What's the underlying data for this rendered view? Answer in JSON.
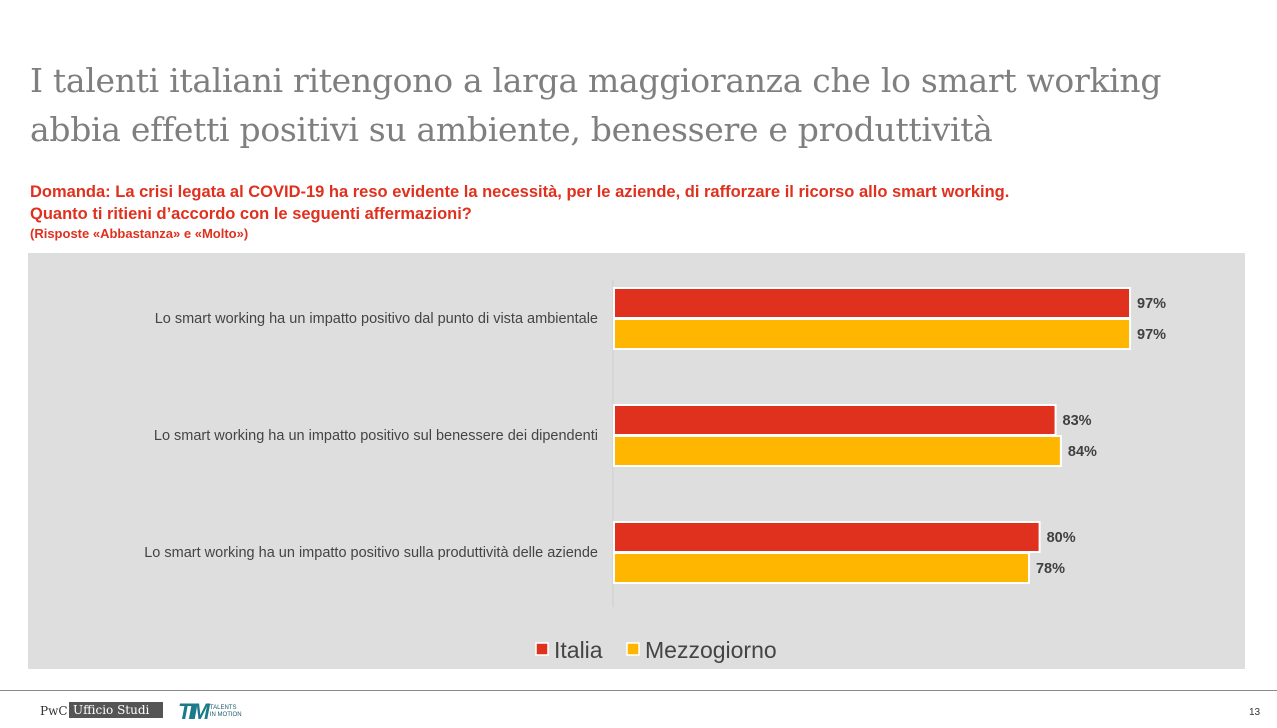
{
  "title": "I talenti italiani ritengono a larga maggioranza che lo smart working abbia effetti positivi su ambiente, benessere e produttività",
  "question": {
    "line1": "Domanda: La crisi legata al COVID-19 ha reso evidente la necessità, per le aziende, di rafforzare il ricorso allo smart working.",
    "line2": "Quanto ti ritieni d’accordo con le seguenti affermazioni?",
    "note": "(Risposte «Abbastanza» e «Molto»)"
  },
  "chart_data": {
    "type": "bar",
    "orientation": "horizontal",
    "categories": [
      "Lo smart working ha un impatto positivo dal punto di vista ambientale",
      "Lo smart working ha un impatto positivo sul benessere dei dipendenti",
      "Lo smart working ha un impatto positivo sulla produttività delle aziende"
    ],
    "series": [
      {
        "name": "Italia",
        "color": "#e0301e",
        "values": [
          97,
          83,
          80
        ],
        "labels": [
          "97%",
          "83%",
          "80%"
        ]
      },
      {
        "name": "Mezzogiorno",
        "color": "#ffb600",
        "values": [
          97,
          84,
          78
        ],
        "labels": [
          "97%",
          "84%",
          "78%"
        ]
      }
    ],
    "xlim": [
      0,
      100
    ],
    "grid": false,
    "legend_position": "bottom",
    "background": "#dedede"
  },
  "footer": {
    "brand": "PwC",
    "unit": "Ufficio Studi",
    "partner_logo": "TALENTS IN MOTION",
    "page": "13"
  }
}
